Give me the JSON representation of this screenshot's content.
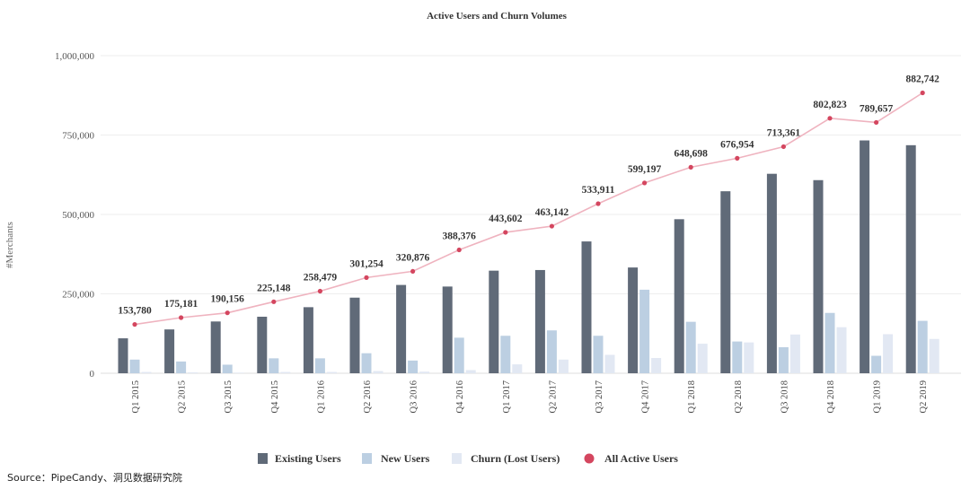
{
  "chart_data": {
    "type": "bar",
    "title": "Active Users and Churn Volumes",
    "ylabel": "#Merchants",
    "xlabel": "",
    "ylim": [
      0,
      1000000
    ],
    "yticks": [
      "0",
      "250,000",
      "500,000",
      "750,000",
      "1,000,000"
    ],
    "ytick_values": [
      0,
      250000,
      500000,
      750000,
      1000000
    ],
    "categories": [
      "Q1 2015",
      "Q2 2015",
      "Q3 2015",
      "Q4 2015",
      "Q1 2016",
      "Q2 2016",
      "Q3 2016",
      "Q4 2016",
      "Q1 2017",
      "Q2 2017",
      "Q3 2017",
      "Q4 2017",
      "Q1 2018",
      "Q2 2018",
      "Q3 2018",
      "Q4 2018",
      "Q1 2019",
      "Q2 2019"
    ],
    "series": [
      {
        "name": "Existing Users",
        "type": "bar",
        "color": "#606a78",
        "values": [
          110000,
          138000,
          163000,
          178000,
          208000,
          238000,
          278000,
          273000,
          323000,
          325000,
          415000,
          333000,
          485000,
          573000,
          628000,
          608000,
          733000,
          718000
        ]
      },
      {
        "name": "New Users",
        "type": "bar",
        "color": "#bccfe2",
        "values": [
          43000,
          37000,
          27000,
          47000,
          47000,
          63000,
          40000,
          112000,
          118000,
          135000,
          118000,
          263000,
          162000,
          100000,
          82000,
          190000,
          55000,
          165000
        ]
      },
      {
        "name": "Churn (Lost Users)",
        "type": "bar",
        "color": "#e2e8f3",
        "values": [
          4000,
          3000,
          2000,
          4000,
          4000,
          7000,
          5000,
          10000,
          28000,
          43000,
          58000,
          48000,
          93000,
          97000,
          122000,
          145000,
          123000,
          108000
        ]
      },
      {
        "name": "All Active Users",
        "type": "line",
        "color": "#d4465f",
        "values": [
          153780,
          175181,
          190156,
          225148,
          258479,
          301254,
          320876,
          388376,
          443602,
          463142,
          533911,
          599197,
          648698,
          676954,
          713361,
          802823,
          789657,
          882742
        ],
        "labels": [
          "153,780",
          "175,181",
          "190,156",
          "225,148",
          "258,479",
          "301,254",
          "320,876",
          "388,376",
          "443,602",
          "463,142",
          "533,911",
          "599,197",
          "648,698",
          "676,954",
          "713,361",
          "802,823",
          "789,657",
          "882,742"
        ]
      }
    ],
    "grid": true,
    "legend": "bottom"
  },
  "source": "Source：PipeCandy、洞见数据研究院"
}
